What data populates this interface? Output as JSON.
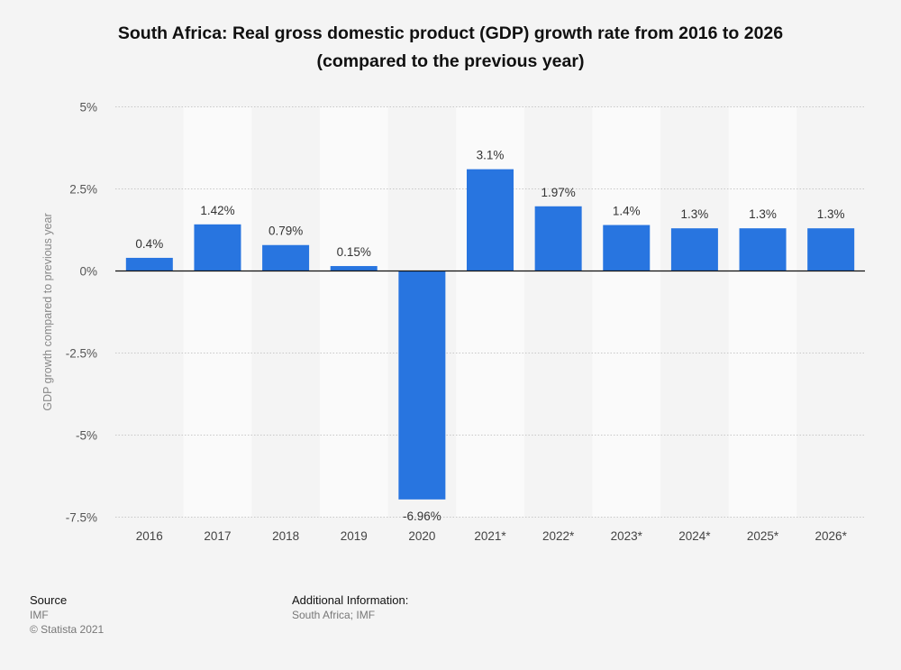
{
  "title": {
    "line1": "South Africa: Real gross domestic product (GDP) growth rate from 2016 to 2026",
    "line2": "(compared to the previous year)"
  },
  "chart_data": {
    "type": "bar",
    "categories": [
      "2016",
      "2017",
      "2018",
      "2019",
      "2020",
      "2021*",
      "2022*",
      "2023*",
      "2024*",
      "2025*",
      "2026*"
    ],
    "values": [
      0.4,
      1.42,
      0.79,
      0.15,
      -6.96,
      3.1,
      1.97,
      1.4,
      1.3,
      1.3,
      1.3
    ],
    "value_labels": [
      "0.4%",
      "1.42%",
      "0.79%",
      "0.15%",
      "-6.96%",
      "3.1%",
      "1.97%",
      "1.4%",
      "1.3%",
      "1.3%",
      "1.3%"
    ],
    "ylabel": "GDP growth compared to previous year",
    "xlabel": "",
    "ylim": [
      -7.5,
      5
    ],
    "yticks": [
      5,
      2.5,
      0,
      -2.5,
      -5,
      -7.5
    ],
    "ytick_labels": [
      "5%",
      "2.5%",
      "0%",
      "-2.5%",
      "-5%",
      "-7.5%"
    ],
    "bar_color": "#2875e0",
    "grid": true
  },
  "footer": {
    "source_heading": "Source",
    "source_name": "IMF",
    "copyright": "© Statista 2021",
    "additional_heading": "Additional Information:",
    "additional_text": "South Africa; IMF"
  }
}
